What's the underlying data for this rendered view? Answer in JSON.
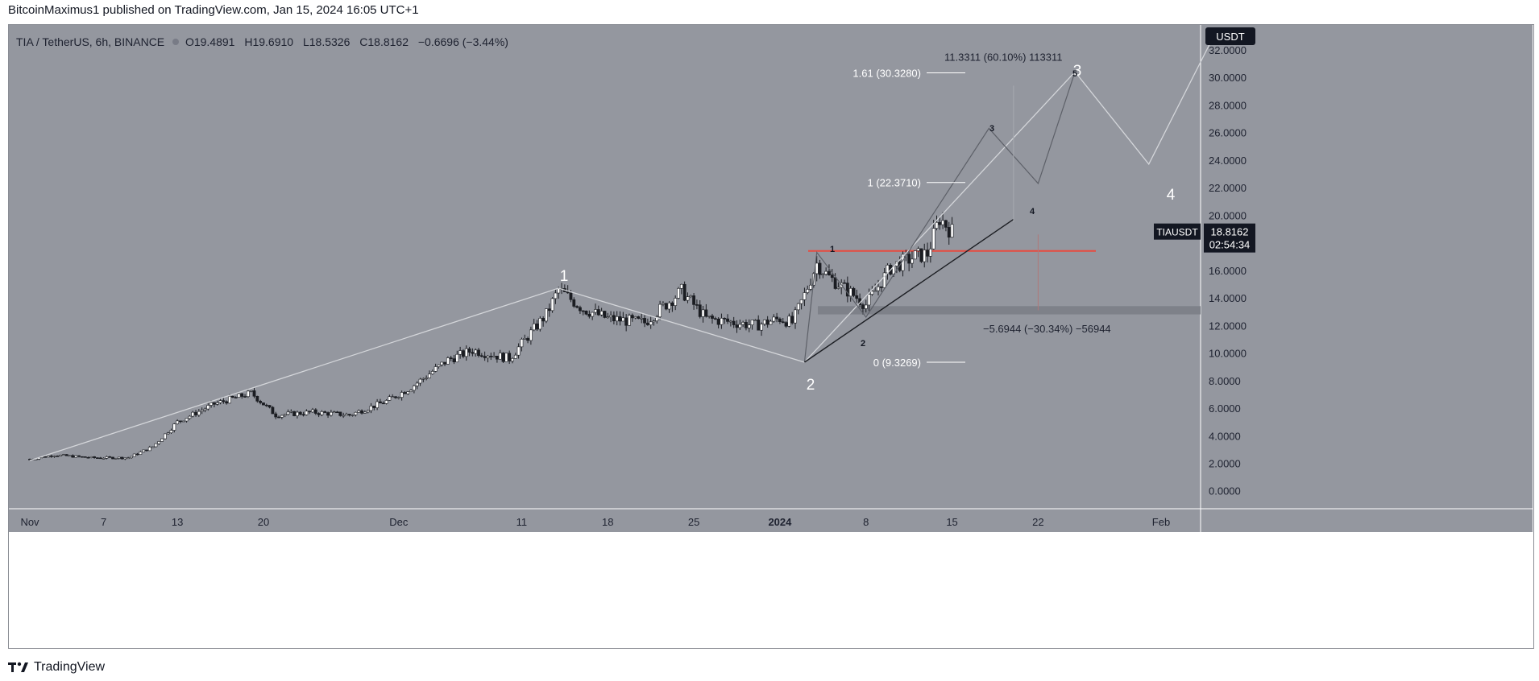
{
  "header": {
    "published": "BitcoinMaximus1 published on TradingView.com, Jan 15, 2024 16:05 UTC+1"
  },
  "legend": {
    "symbol": "TIA / TetherUS, 6h, BINANCE",
    "o_label": "O",
    "o": "19.4891",
    "h_label": "H",
    "h": "19.6910",
    "l_label": "L",
    "l": "18.5326",
    "c_label": "C",
    "c": "18.8162",
    "change": "−0.6696 (−3.44%)"
  },
  "price_axis": {
    "currency": "USDT",
    "ticks": [
      "32.0000",
      "30.0000",
      "28.0000",
      "26.0000",
      "24.0000",
      "22.0000",
      "20.0000",
      "16.0000",
      "14.0000",
      "12.0000",
      "10.0000",
      "8.0000",
      "6.0000",
      "4.0000",
      "2.0000",
      "0.0000"
    ],
    "last_symbol": "TIAUSDT",
    "last_price": "18.8162",
    "countdown": "02:54:34"
  },
  "time_axis": {
    "ticks": [
      "Nov",
      "7",
      "13",
      "20",
      "Dec",
      "11",
      "18",
      "25",
      "2024",
      "8",
      "15",
      "22",
      "Feb"
    ]
  },
  "annotations": {
    "fib_161": "1.61 (30.3280)",
    "fib_1": "1 (22.3710)",
    "fib_0": "0 (9.3269)",
    "measure_up": "11.3311 (60.10%) 113311",
    "measure_down": "−5.6944 (−30.34%) −56944",
    "wave_big_1": "1",
    "wave_big_2": "2",
    "wave_big_3": "3",
    "wave_big_4": "4",
    "wave_small_1": "1",
    "wave_small_2": "2",
    "wave_small_3": "3",
    "wave_small_4": "4",
    "wave_small_5": "5"
  },
  "footer": {
    "brand": "TradingView"
  },
  "colors": {
    "background": "#94979f",
    "candle": "#ffffff",
    "resistance": "#e84a3f",
    "support_zone": "#7e8189",
    "wave_line_light": "#d4d6da",
    "wave_line_dark": "#5d6068",
    "trendline": "#1b1d22"
  },
  "chart_data": {
    "type": "candlestick",
    "title": "TIA / TetherUS, 6h, BINANCE",
    "ylabel": "USDT",
    "ylim": [
      -1.3,
      33.8
    ],
    "x_ticks": [
      "Nov",
      "7",
      "13",
      "20",
      "Dec",
      "11",
      "18",
      "25",
      "2024",
      "8",
      "15",
      "22",
      "Feb"
    ],
    "series": [
      {
        "name": "TIAUSDT",
        "points": [
          [
            "Nov 1",
            2.3
          ],
          [
            "Nov 3",
            2.6
          ],
          [
            "Nov 6",
            2.4
          ],
          [
            "Nov 9",
            2.4
          ],
          [
            "Nov 11",
            3.2
          ],
          [
            "Nov 13",
            5.0
          ],
          [
            "Nov 16",
            6.3
          ],
          [
            "Nov 19",
            7.1
          ],
          [
            "Nov 21",
            5.5
          ],
          [
            "Nov 24",
            5.7
          ],
          [
            "Nov 27",
            5.5
          ],
          [
            "Nov 30",
            6.5
          ],
          [
            "Dec 2",
            7.5
          ],
          [
            "Dec 5",
            9.5
          ],
          [
            "Dec 7",
            10.2
          ],
          [
            "Dec 10",
            9.6
          ],
          [
            "Dec 13",
            12.8
          ],
          [
            "Dec 14",
            14.6
          ],
          [
            "Dec 16",
            13.2
          ],
          [
            "Dec 18",
            12.5
          ],
          [
            "Dec 21",
            12.2
          ],
          [
            "Dec 24",
            14.5
          ],
          [
            "Dec 26",
            12.5
          ],
          [
            "Dec 30",
            12.0
          ],
          [
            "Jan 1",
            12.5
          ],
          [
            "Jan 2",
            12.2
          ],
          [
            "Jan 3",
            14.2
          ],
          [
            "Jan 4",
            16.5
          ],
          [
            "Jan 5",
            15.5
          ],
          [
            "Jan 7",
            14.2
          ],
          [
            "Jan 8",
            13.5
          ],
          [
            "Jan 10",
            16.2
          ],
          [
            "Jan 12",
            17.0
          ],
          [
            "Jan 13",
            17.2
          ],
          [
            "Jan 14",
            19.8
          ],
          [
            "Jan 15",
            18.8
          ]
        ]
      }
    ],
    "resistance_level": 17.4,
    "support_zone": [
      12.8,
      13.4
    ],
    "fibonacci": [
      {
        "ratio": 1.61,
        "price": 30.328
      },
      {
        "ratio": 1,
        "price": 22.371
      },
      {
        "ratio": 0,
        "price": 9.3269
      }
    ],
    "measurements": [
      {
        "change": 11.3311,
        "percent": 60.1,
        "ticks": 113311
      },
      {
        "change": -5.6944,
        "percent": -30.34,
        "ticks": -56944
      }
    ],
    "wave_count": {
      "large": [
        {
          "label": "1",
          "date": "Dec 14",
          "price": 14.7
        },
        {
          "label": "2",
          "date": "Jan 3",
          "price": 9.33
        },
        {
          "label": "3",
          "date": "Jan 25",
          "price": 30.4
        },
        {
          "label": "4",
          "date": "Jan 31",
          "price": 23.7
        }
      ],
      "small": [
        {
          "label": "1",
          "date": "Jan 4",
          "price": 17.3
        },
        {
          "label": "2",
          "date": "Jan 8",
          "price": 12.6
        },
        {
          "label": "3",
          "date": "Jan 18",
          "price": 26.3
        },
        {
          "label": "4",
          "date": "Jan 22",
          "price": 22.3
        },
        {
          "label": "5",
          "date": "Jan 25",
          "price": 30.4
        }
      ]
    },
    "grid": false,
    "legend": "top-left"
  }
}
